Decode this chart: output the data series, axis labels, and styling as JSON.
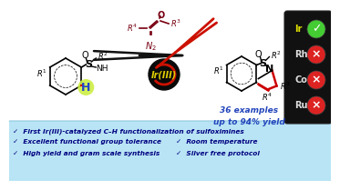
{
  "bg_color": "#ffffff",
  "bottom_box_color": "#b8e4f5",
  "bottom_box_edge_color": "#90c8e0",
  "bullet_text_color": "#000080",
  "bullet_lines": [
    [
      "✓  First Ir(III)-catalyzed C–H functionalization of sulfoximines",
      ""
    ],
    [
      "✓  Excellent functional group tolerance",
      "✓  Room temperature"
    ],
    [
      "✓  High yield and gram scale synthesis",
      "✓  Silver free protocol"
    ]
  ],
  "traffic_bg": "#111111",
  "traffic_labels": [
    "Ir",
    "Rh",
    "Co",
    "Ru"
  ],
  "traffic_colors": [
    "#44cc33",
    "#dd2222",
    "#dd2222",
    "#dd2222"
  ],
  "traffic_symbols": [
    "✓",
    "×",
    "×",
    "×"
  ],
  "arrow_color": "#111111",
  "ir_text": "Ir(III)",
  "examples_text": "36 examples\nup to 94% yield",
  "examples_color": "#2244bb",
  "reagent_color": "#770011",
  "product_red_color": "#cc0000",
  "sulfoximine_color": "#111111"
}
